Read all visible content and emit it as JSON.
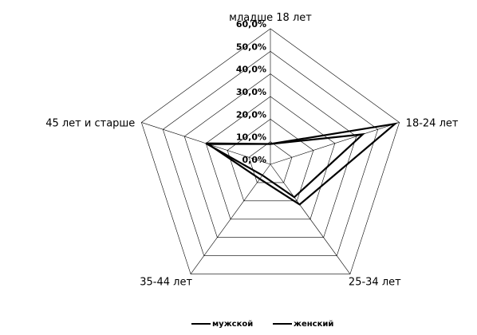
{
  "chart_data": {
    "type": "radar",
    "categories": [
      "младше 18 лет",
      "18-24 лет",
      "25-34 лет",
      "35-44 лет",
      "45 лет и старше"
    ],
    "ticks": [
      "0,0%",
      "10,0%",
      "20,0%",
      "30,0%",
      "40,0%",
      "50,0%",
      "60,0%"
    ],
    "rlim": [
      0,
      60
    ],
    "series": [
      {
        "name": "мужской",
        "values": [
          9,
          58,
          22,
          8,
          29
        ]
      },
      {
        "name": "женский",
        "values": [
          9,
          43,
          18,
          6,
          30
        ]
      }
    ],
    "legend_position": "bottom-right"
  }
}
